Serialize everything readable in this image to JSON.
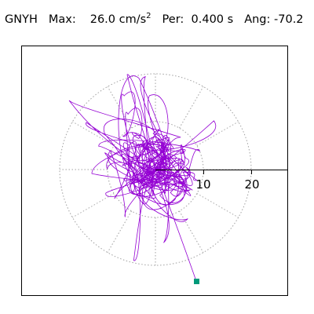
{
  "header": {
    "station": "GNYH",
    "max_label": "Max:",
    "max_value": "26.0",
    "max_unit": "cm/s",
    "max_exp": "2",
    "per_label": "Per:",
    "per_value": "0.400",
    "per_unit": "s",
    "ang_label": "Ang:",
    "ang_value": "-70.2"
  },
  "plot": {
    "axis_labels": [
      "10",
      "20"
    ],
    "trace_color": "#9400d3",
    "grid_color": "#a0a0a0",
    "marker_color": "#009a7a",
    "rings": [
      10,
      20
    ]
  }
}
